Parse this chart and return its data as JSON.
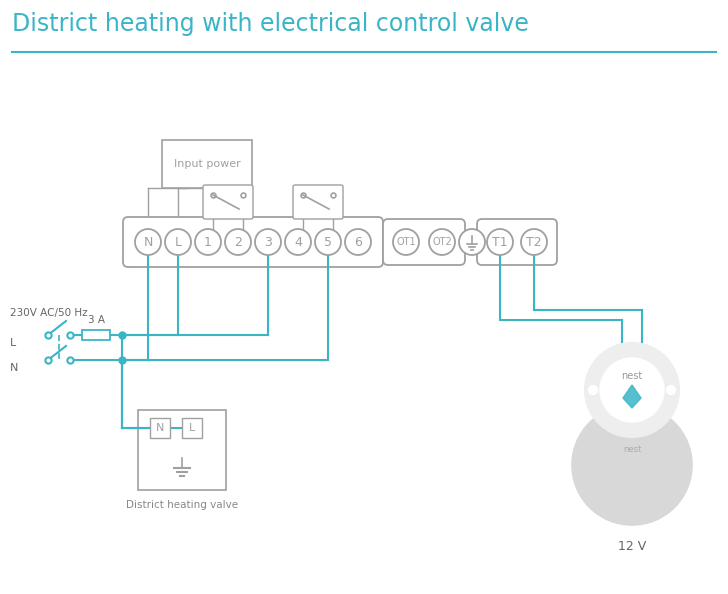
{
  "title": "District heating with electrical control valve",
  "title_color": "#3ab5c6",
  "title_fontsize": 17,
  "bg_color": "#ffffff",
  "line_color": "#3ab5c6",
  "box_color": "#a0a0a0",
  "terminal_labels_main": [
    "N",
    "L",
    "1",
    "2",
    "3",
    "4",
    "5",
    "6"
  ],
  "terminal_labels_ot": [
    "OT1",
    "OT2"
  ],
  "terminal_labels_t": [
    "T1",
    "T2"
  ],
  "label_3A": "3 A",
  "label_230V": "230V AC/50 Hz",
  "label_L": "L",
  "label_N": "N",
  "label_valve": "District heating valve",
  "label_12V": "12 V",
  "label_input": "Input power",
  "label_nest": "nest"
}
